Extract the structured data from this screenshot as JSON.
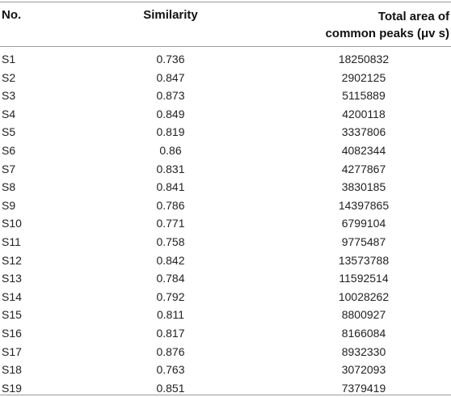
{
  "table": {
    "headers": {
      "no": "No.",
      "similarity": "Similarity",
      "area_line1": "Total area of",
      "area_line2": "common peaks (μv s)"
    },
    "rows": [
      {
        "no": "S1",
        "similarity": "0.736",
        "area": "18250832"
      },
      {
        "no": "S2",
        "similarity": "0.847",
        "area": "2902125"
      },
      {
        "no": "S3",
        "similarity": "0.873",
        "area": "5115889"
      },
      {
        "no": "S4",
        "similarity": "0.849",
        "area": "4200118"
      },
      {
        "no": "S5",
        "similarity": "0.819",
        "area": "3337806"
      },
      {
        "no": "S6",
        "similarity": "0.86",
        "area": "4082344"
      },
      {
        "no": "S7",
        "similarity": "0.831",
        "area": "4277867"
      },
      {
        "no": "S8",
        "similarity": "0.841",
        "area": "3830185"
      },
      {
        "no": "S9",
        "similarity": "0.786",
        "area": "14397865"
      },
      {
        "no": "S10",
        "similarity": "0.771",
        "area": "6799104"
      },
      {
        "no": "S11",
        "similarity": "0.758",
        "area": "9775487"
      },
      {
        "no": "S12",
        "similarity": "0.842",
        "area": "13573788"
      },
      {
        "no": "S13",
        "similarity": "0.784",
        "area": "11592514"
      },
      {
        "no": "S14",
        "similarity": "0.792",
        "area": "10028262"
      },
      {
        "no": "S15",
        "similarity": "0.811",
        "area": "8800927"
      },
      {
        "no": "S16",
        "similarity": "0.817",
        "area": "8166084"
      },
      {
        "no": "S17",
        "similarity": "0.876",
        "area": "8932330"
      },
      {
        "no": "S18",
        "similarity": "0.763",
        "area": "3072093"
      },
      {
        "no": "S19",
        "similarity": "0.851",
        "area": "7379419"
      }
    ]
  }
}
